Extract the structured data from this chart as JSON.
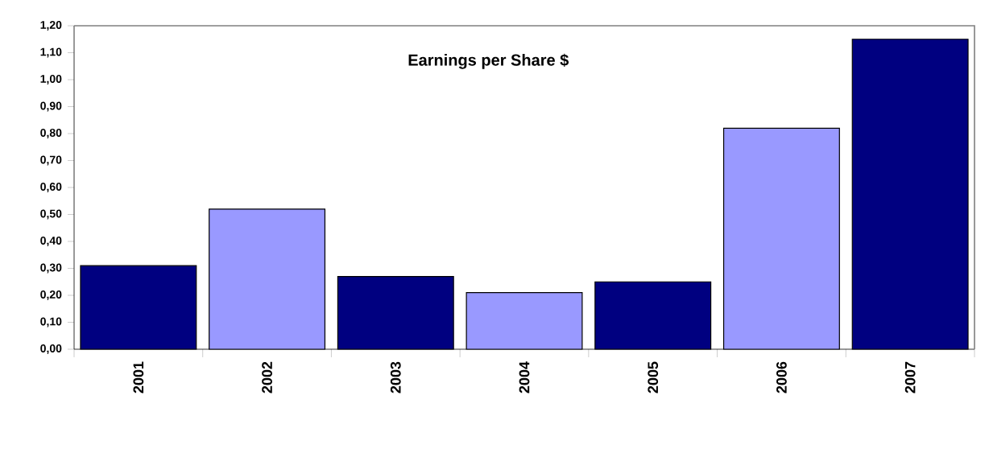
{
  "chart_data": {
    "type": "bar",
    "title": "Earnings per Share $",
    "categories": [
      "2001",
      "2002",
      "2003",
      "2004",
      "2005",
      "2006",
      "2007"
    ],
    "values": [
      0.31,
      0.52,
      0.27,
      0.21,
      0.25,
      0.82,
      1.15
    ],
    "colors": [
      "#000080",
      "#9999ff",
      "#000080",
      "#9999ff",
      "#000080",
      "#9999ff",
      "#000080"
    ],
    "ylim": [
      0,
      1.2
    ],
    "yticks": [
      {
        "value": 0,
        "label": "0,00"
      },
      {
        "value": 0.1,
        "label": "0,10"
      },
      {
        "value": 0.2,
        "label": "0,20"
      },
      {
        "value": 0.3,
        "label": "0,30"
      },
      {
        "value": 0.4,
        "label": "0,40"
      },
      {
        "value": 0.5,
        "label": "0,50"
      },
      {
        "value": 0.6,
        "label": "0,60"
      },
      {
        "value": 0.7,
        "label": "0,70"
      },
      {
        "value": 0.8,
        "label": "0,80"
      },
      {
        "value": 0.9,
        "label": "0,90"
      },
      {
        "value": 1.0,
        "label": "1,00"
      },
      {
        "value": 1.1,
        "label": "1,10"
      },
      {
        "value": 1.2,
        "label": "1,20"
      }
    ],
    "grid": false
  }
}
